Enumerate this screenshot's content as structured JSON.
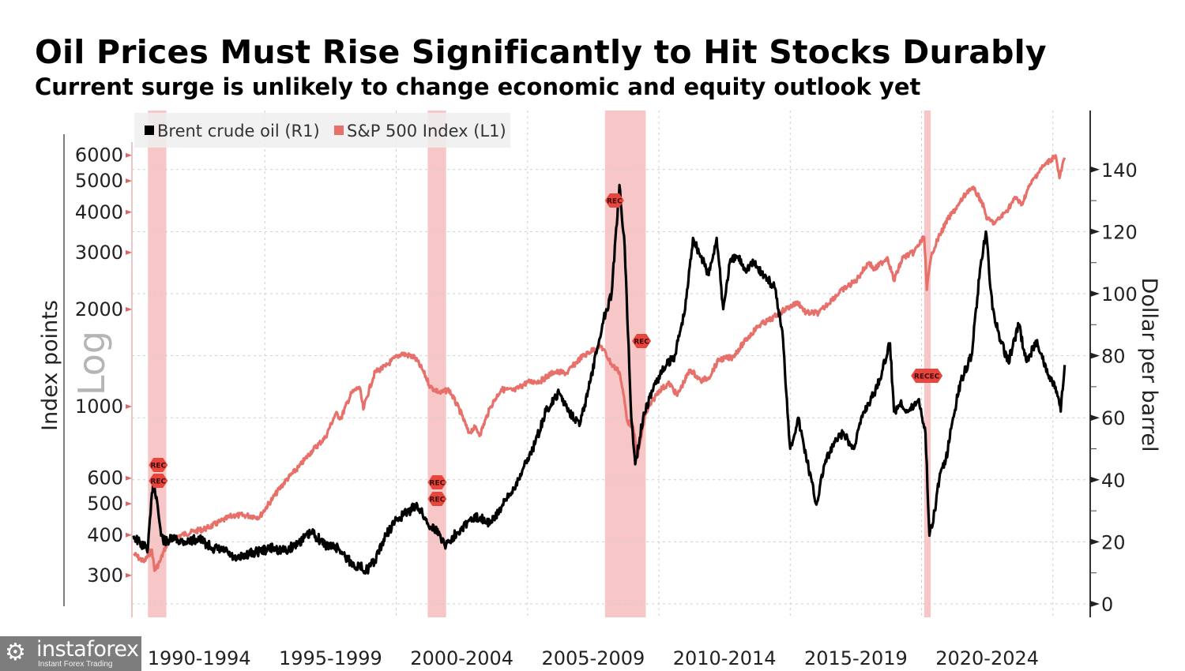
{
  "header": {
    "title": "Oil Prices Must Rise Significantly to Hit Stocks Durably",
    "subtitle": "Current surge is unlikely to change economic and equity outlook yet"
  },
  "watermark": {
    "brand": "instaforex",
    "tagline": "Instant Forex Trading",
    "icon": "gear-person-icon"
  },
  "colors": {
    "brent": "#000000",
    "sp500": "#e8706a",
    "recession_band": "#f4b3b3",
    "rec_marker": "#e8453c",
    "grid": "#cfcfcf"
  },
  "chart_data": {
    "type": "line",
    "title": "Oil Prices Must Rise Significantly to Hit Stocks Durably",
    "subtitle": "Current surge is unlikely to change economic and equity outlook yet",
    "xlabel": "",
    "x_tick_labels": [
      "1990-1994",
      "1995-1999",
      "2000-2004",
      "2005-2009",
      "2010-2014",
      "2015-2019",
      "2020-2024"
    ],
    "xlim": [
      1990,
      2025.6
    ],
    "legend": {
      "placement": "top-left",
      "entries": [
        "Brent crude oil (R1)",
        "S&P 500 Index (L1)"
      ]
    },
    "grid": true,
    "left_axis": {
      "label": "Index points",
      "scale": "log",
      "scale_label": "Log",
      "ticks": [
        300,
        400,
        500,
        600,
        1000,
        2000,
        3000,
        4000,
        5000,
        6000
      ],
      "ylim": [
        260,
        7000
      ]
    },
    "right_axis": {
      "label": "Dollar per barrel",
      "scale": "linear",
      "ticks": [
        0,
        20,
        40,
        60,
        80,
        100,
        120,
        140
      ],
      "ylim": [
        0,
        160
      ]
    },
    "recessions": [
      {
        "start": 1990.55,
        "end": 1991.25,
        "markers": [
          "REC",
          "REC"
        ]
      },
      {
        "start": 2001.2,
        "end": 2001.9,
        "markers": [
          "REC",
          "REC"
        ]
      },
      {
        "start": 2007.95,
        "end": 2009.5,
        "markers": [
          "REC",
          "REC"
        ]
      },
      {
        "start": 2020.1,
        "end": 2020.35,
        "markers": [
          "RECEC"
        ]
      }
    ],
    "series": [
      {
        "name": "Brent crude oil (R1)",
        "axis": "right",
        "x": [
          1990.0,
          1990.3,
          1990.55,
          1990.75,
          1990.9,
          1991.05,
          1991.2,
          1991.5,
          1992.0,
          1992.5,
          1993.0,
          1993.5,
          1993.9,
          1994.3,
          1994.8,
          1995.3,
          1995.8,
          1996.3,
          1996.8,
          1997.3,
          1997.8,
          1998.3,
          1998.9,
          1999.2,
          1999.6,
          2000.0,
          2000.5,
          2000.8,
          2001.2,
          2001.5,
          2001.9,
          2002.3,
          2002.8,
          2003.2,
          2003.6,
          2004.0,
          2004.4,
          2004.8,
          2005.3,
          2005.7,
          2006.2,
          2006.6,
          2007.0,
          2007.4,
          2007.9,
          2008.2,
          2008.5,
          2008.7,
          2008.95,
          2009.1,
          2009.4,
          2009.8,
          2010.2,
          2010.6,
          2011.0,
          2011.3,
          2011.6,
          2011.9,
          2012.2,
          2012.45,
          2012.7,
          2013.0,
          2013.3,
          2013.6,
          2014.0,
          2014.4,
          2014.7,
          2015.0,
          2015.3,
          2015.6,
          2016.0,
          2016.3,
          2016.7,
          2017.0,
          2017.4,
          2017.8,
          2018.2,
          2018.5,
          2018.8,
          2018.95,
          2019.2,
          2019.5,
          2019.9,
          2020.15,
          2020.3,
          2020.5,
          2020.7,
          2020.9,
          2021.2,
          2021.5,
          2021.9,
          2022.2,
          2022.45,
          2022.7,
          2023.0,
          2023.3,
          2023.7,
          2024.0,
          2024.4,
          2024.8,
          2025.1,
          2025.3,
          2025.45
        ],
        "values": [
          22,
          19,
          18,
          40,
          33,
          22,
          20,
          21,
          20,
          21,
          18,
          17,
          14,
          16,
          17,
          18,
          17,
          20,
          23,
          19,
          18,
          13,
          11,
          14,
          22,
          27,
          30,
          32,
          26,
          24,
          19,
          23,
          27,
          28,
          26,
          31,
          36,
          43,
          52,
          62,
          68,
          62,
          58,
          72,
          92,
          100,
          135,
          115,
          60,
          45,
          60,
          70,
          76,
          80,
          95,
          118,
          112,
          106,
          118,
          95,
          110,
          112,
          108,
          110,
          106,
          102,
          88,
          50,
          60,
          48,
          32,
          45,
          52,
          55,
          50,
          62,
          68,
          75,
          84,
          62,
          65,
          62,
          66,
          55,
          22,
          30,
          42,
          45,
          60,
          72,
          80,
          105,
          120,
          95,
          85,
          78,
          90,
          78,
          85,
          74,
          70,
          62,
          77
        ]
      },
      {
        "name": "S&P 500 Index (L1)",
        "axis": "left",
        "x": [
          1990.0,
          1990.4,
          1990.7,
          1990.8,
          1991.0,
          1991.3,
          1991.8,
          1992.3,
          1992.8,
          1993.3,
          1993.8,
          1994.3,
          1994.8,
          1995.3,
          1995.8,
          1996.3,
          1996.8,
          1997.3,
          1997.7,
          1997.9,
          1998.3,
          1998.6,
          1998.75,
          1999.2,
          1999.6,
          1999.8,
          2000.2,
          2000.7,
          2001.0,
          2001.3,
          2001.7,
          2002.0,
          2002.5,
          2002.75,
          2003.0,
          2003.2,
          2003.6,
          2004.0,
          2004.5,
          2005.0,
          2005.5,
          2006.0,
          2006.5,
          2007.0,
          2007.5,
          2007.8,
          2008.2,
          2008.5,
          2008.8,
          2009.0,
          2009.2,
          2009.5,
          2010.0,
          2010.4,
          2010.7,
          2011.2,
          2011.6,
          2011.9,
          2012.3,
          2012.8,
          2013.3,
          2013.8,
          2014.3,
          2014.8,
          2015.3,
          2015.6,
          2016.1,
          2016.6,
          2017.0,
          2017.5,
          2018.0,
          2018.2,
          2018.7,
          2018.95,
          2019.3,
          2019.7,
          2020.1,
          2020.2,
          2020.4,
          2020.7,
          2021.0,
          2021.4,
          2021.8,
          2022.0,
          2022.3,
          2022.5,
          2022.8,
          2023.2,
          2023.6,
          2023.8,
          2024.1,
          2024.5,
          2024.9,
          2025.1,
          2025.25,
          2025.45
        ],
        "values": [
          350,
          330,
          360,
          310,
          330,
          380,
          400,
          410,
          420,
          440,
          460,
          460,
          455,
          520,
          590,
          650,
          730,
          800,
          950,
          920,
          1100,
          1150,
          980,
          1280,
          1330,
          1380,
          1460,
          1420,
          1300,
          1150,
          1100,
          1130,
          940,
          830,
          860,
          820,
          1000,
          1130,
          1120,
          1190,
          1200,
          1280,
          1270,
          1410,
          1500,
          1540,
          1350,
          1280,
          900,
          870,
          700,
          950,
          1120,
          1180,
          1080,
          1300,
          1200,
          1230,
          1400,
          1420,
          1600,
          1780,
          1870,
          2000,
          2100,
          1950,
          1950,
          2150,
          2300,
          2450,
          2800,
          2650,
          2900,
          2450,
          2900,
          3000,
          3350,
          2300,
          3000,
          3400,
          3800,
          4200,
          4700,
          4700,
          4300,
          3800,
          3700,
          4000,
          4450,
          4200,
          4800,
          5400,
          5800,
          6000,
          5100,
          5900
        ]
      }
    ]
  }
}
